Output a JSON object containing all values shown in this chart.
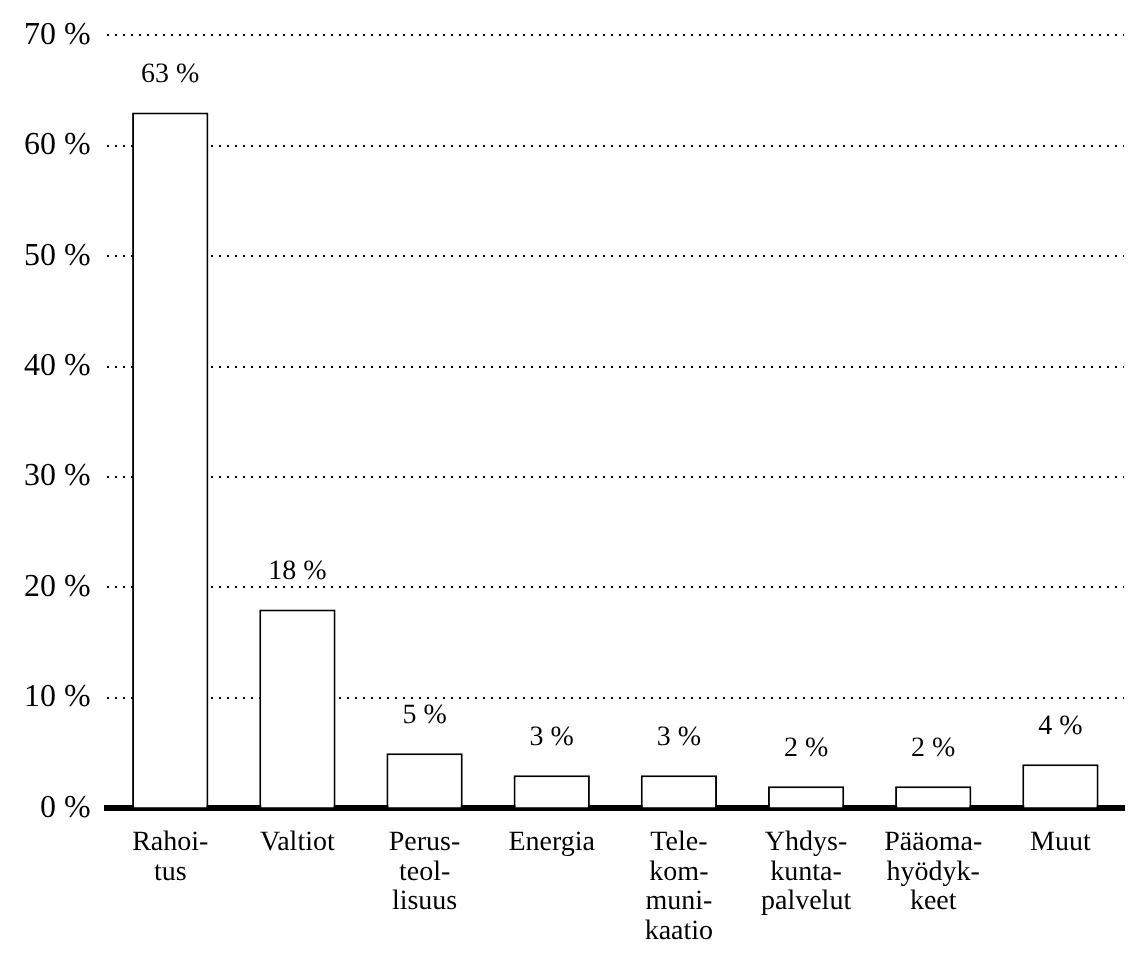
{
  "chart_data": {
    "type": "bar",
    "categories": [
      "Rahoi-\ntus",
      "Valtiot",
      "Perus-\nteol-\nlisuus",
      "Energia",
      "Tele-\nkom-\nmuni-\nkaatio",
      "Yhdys-\nkunta-\npalvelut",
      "Pääoma-\nhyödyk-\nkeet",
      "Muut"
    ],
    "values": [
      63,
      18,
      5,
      3,
      3,
      2,
      2,
      4
    ],
    "value_labels": [
      "63 %",
      "18 %",
      "5 %",
      "3 %",
      "3 %",
      "2 %",
      "2 %",
      "4 %"
    ],
    "color": "#ffffff",
    "ylim": [
      0,
      70
    ],
    "yticks": [
      {
        "value": 0,
        "label": "0 %"
      },
      {
        "value": 10,
        "label": "10 %"
      },
      {
        "value": 20,
        "label": "20 %"
      },
      {
        "value": 30,
        "label": "30 %"
      },
      {
        "value": 40,
        "label": "40 %"
      },
      {
        "value": 50,
        "label": "50 %"
      },
      {
        "value": 60,
        "label": "60 %"
      },
      {
        "value": 70,
        "label": "70 %"
      }
    ],
    "grid": "y",
    "legend": false
  }
}
